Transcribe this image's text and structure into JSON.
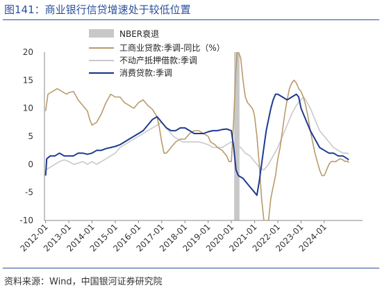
{
  "title": "图141：商业银行信贷增速处于较低位置",
  "source": "资料来源：Wind，中国银河证券研究院",
  "chart_data": {
    "type": "line",
    "ylim": [
      -10,
      20
    ],
    "yticks": [
      "20",
      "15",
      "10",
      "5",
      "0",
      "-5",
      "-10"
    ],
    "ytick_values": [
      20,
      15,
      10,
      5,
      0,
      -5,
      -10
    ],
    "xlim": [
      2011.95,
      2025.35
    ],
    "xticks": [
      "2012-01",
      "2013-01",
      "2014-01",
      "2015-01",
      "2016-01",
      "2017-01",
      "2018-01",
      "2019-01",
      "2020-01",
      "2021-01",
      "2022-01",
      "2023-01",
      "2024-01"
    ],
    "xtick_values": [
      2012,
      2013,
      2014,
      2015,
      2016,
      2017,
      2018,
      2019,
      2020,
      2021,
      2022,
      2023,
      2024
    ],
    "grid": false,
    "legend_position": "top-center",
    "recession": {
      "name": "NBER衰退",
      "start": 2020.12,
      "end": 2020.35,
      "color": "#c8c8c8"
    },
    "series": [
      {
        "name": "工商业贷款:季调-同比（%）",
        "color": "#b89a6a",
        "points": [
          [
            2012.0,
            9.5
          ],
          [
            2012.1,
            12.5
          ],
          [
            2012.3,
            13.0
          ],
          [
            2012.5,
            13.5
          ],
          [
            2012.7,
            13.0
          ],
          [
            2012.9,
            12.5
          ],
          [
            2013.0,
            12.8
          ],
          [
            2013.2,
            13.0
          ],
          [
            2013.4,
            11.5
          ],
          [
            2013.6,
            10.5
          ],
          [
            2013.8,
            9.5
          ],
          [
            2013.9,
            8.0
          ],
          [
            2014.0,
            7.0
          ],
          [
            2014.2,
            7.5
          ],
          [
            2014.4,
            9.0
          ],
          [
            2014.6,
            11.0
          ],
          [
            2014.8,
            12.5
          ],
          [
            2015.0,
            12.0
          ],
          [
            2015.2,
            12.0
          ],
          [
            2015.4,
            11.0
          ],
          [
            2015.6,
            10.5
          ],
          [
            2015.8,
            10.0
          ],
          [
            2016.0,
            11.0
          ],
          [
            2016.2,
            11.5
          ],
          [
            2016.4,
            10.5
          ],
          [
            2016.6,
            9.8
          ],
          [
            2016.8,
            8.5
          ],
          [
            2016.9,
            6.5
          ],
          [
            2017.0,
            4.0
          ],
          [
            2017.1,
            2.0
          ],
          [
            2017.2,
            2.0
          ],
          [
            2017.4,
            3.0
          ],
          [
            2017.6,
            4.0
          ],
          [
            2017.8,
            4.5
          ],
          [
            2018.0,
            4.5
          ],
          [
            2018.2,
            5.5
          ],
          [
            2018.4,
            6.0
          ],
          [
            2018.6,
            6.0
          ],
          [
            2018.8,
            5.5
          ],
          [
            2019.0,
            5.0
          ],
          [
            2019.1,
            4.0
          ],
          [
            2019.3,
            3.5
          ],
          [
            2019.4,
            3.0
          ],
          [
            2019.6,
            2.5
          ],
          [
            2019.7,
            2.0
          ],
          [
            2019.8,
            1.5
          ],
          [
            2019.9,
            0.5
          ],
          [
            2020.0,
            0.5
          ],
          [
            2020.1,
            8.0
          ],
          [
            2020.18,
            16.0
          ],
          [
            2020.25,
            20.0
          ],
          [
            2020.3,
            20.0
          ],
          [
            2020.4,
            19.0
          ],
          [
            2020.5,
            15.0
          ],
          [
            2020.6,
            12.0
          ],
          [
            2020.7,
            11.0
          ],
          [
            2020.8,
            10.5
          ],
          [
            2020.9,
            10.0
          ],
          [
            2020.95,
            9.5
          ],
          [
            2021.0,
            8.5
          ],
          [
            2021.1,
            5.0
          ],
          [
            2021.2,
            0.0
          ],
          [
            2021.3,
            -6.0
          ],
          [
            2021.4,
            -10.0
          ],
          [
            2021.6,
            -10.0
          ],
          [
            2021.7,
            -6.0
          ],
          [
            2021.8,
            -4.0
          ],
          [
            2021.9,
            -2.0
          ],
          [
            2022.0,
            1.0
          ],
          [
            2022.1,
            3.0
          ],
          [
            2022.2,
            6.0
          ],
          [
            2022.3,
            9.0
          ],
          [
            2022.4,
            11.5
          ],
          [
            2022.5,
            13.5
          ],
          [
            2022.6,
            14.5
          ],
          [
            2022.7,
            15.0
          ],
          [
            2022.8,
            14.5
          ],
          [
            2022.9,
            13.5
          ],
          [
            2023.0,
            13.0
          ],
          [
            2023.1,
            12.0
          ],
          [
            2023.2,
            10.5
          ],
          [
            2023.3,
            8.5
          ],
          [
            2023.4,
            6.0
          ],
          [
            2023.5,
            4.0
          ],
          [
            2023.6,
            2.0
          ],
          [
            2023.7,
            0.5
          ],
          [
            2023.8,
            -1.0
          ],
          [
            2023.9,
            -2.0
          ],
          [
            2024.0,
            -2.0
          ],
          [
            2024.1,
            -1.0
          ],
          [
            2024.2,
            0.0
          ],
          [
            2024.3,
            0.5
          ],
          [
            2024.4,
            0.5
          ],
          [
            2024.5,
            0.5
          ],
          [
            2024.6,
            0.8
          ],
          [
            2024.7,
            1.0
          ],
          [
            2024.8,
            0.8
          ],
          [
            2024.9,
            0.5
          ],
          [
            2025.0,
            0.6
          ],
          [
            2025.05,
            0.3
          ]
        ]
      },
      {
        "name": "不动产抵押借款:季调",
        "color": "#c9c9c9",
        "points": [
          [
            2012.0,
            -1.0
          ],
          [
            2012.2,
            -0.5
          ],
          [
            2012.4,
            0.0
          ],
          [
            2012.6,
            0.5
          ],
          [
            2012.8,
            0.8
          ],
          [
            2013.0,
            0.5
          ],
          [
            2013.2,
            0.0
          ],
          [
            2013.4,
            0.2
          ],
          [
            2013.6,
            0.5
          ],
          [
            2013.8,
            0.0
          ],
          [
            2014.0,
            0.5
          ],
          [
            2014.2,
            0.0
          ],
          [
            2014.4,
            0.5
          ],
          [
            2014.6,
            1.0
          ],
          [
            2014.8,
            1.5
          ],
          [
            2015.0,
            2.0
          ],
          [
            2015.2,
            3.0
          ],
          [
            2015.4,
            3.5
          ],
          [
            2015.6,
            4.0
          ],
          [
            2015.8,
            4.5
          ],
          [
            2016.0,
            5.0
          ],
          [
            2016.2,
            5.5
          ],
          [
            2016.4,
            6.0
          ],
          [
            2016.6,
            6.5
          ],
          [
            2016.8,
            7.0
          ],
          [
            2017.0,
            7.5
          ],
          [
            2017.1,
            7.0
          ],
          [
            2017.3,
            6.0
          ],
          [
            2017.5,
            5.0
          ],
          [
            2017.7,
            4.5
          ],
          [
            2017.9,
            4.0
          ],
          [
            2018.0,
            4.0
          ],
          [
            2018.2,
            4.0
          ],
          [
            2018.4,
            4.0
          ],
          [
            2018.6,
            4.0
          ],
          [
            2018.8,
            3.8
          ],
          [
            2019.0,
            3.5
          ],
          [
            2019.2,
            3.0
          ],
          [
            2019.4,
            3.0
          ],
          [
            2019.6,
            3.0
          ],
          [
            2019.8,
            3.5
          ],
          [
            2020.0,
            4.0
          ],
          [
            2020.2,
            3.5
          ],
          [
            2020.4,
            3.0
          ],
          [
            2020.6,
            2.0
          ],
          [
            2020.8,
            1.5
          ],
          [
            2021.0,
            0.5
          ],
          [
            2021.2,
            -0.5
          ],
          [
            2021.4,
            -1.0
          ],
          [
            2021.6,
            0.0
          ],
          [
            2021.8,
            1.5
          ],
          [
            2022.0,
            3.0
          ],
          [
            2022.2,
            5.0
          ],
          [
            2022.4,
            7.0
          ],
          [
            2022.6,
            9.0
          ],
          [
            2022.8,
            10.5
          ],
          [
            2023.0,
            11.5
          ],
          [
            2023.1,
            12.0
          ],
          [
            2023.2,
            11.5
          ],
          [
            2023.4,
            10.0
          ],
          [
            2023.6,
            8.0
          ],
          [
            2023.8,
            6.0
          ],
          [
            2024.0,
            5.0
          ],
          [
            2024.2,
            4.0
          ],
          [
            2024.4,
            3.0
          ],
          [
            2024.6,
            2.5
          ],
          [
            2024.8,
            2.0
          ],
          [
            2025.0,
            2.0
          ],
          [
            2025.05,
            1.8
          ]
        ]
      },
      {
        "name": "消费贷款:季调",
        "color": "#1d3a8f",
        "points": [
          [
            2012.0,
            -2.0
          ],
          [
            2012.05,
            1.0
          ],
          [
            2012.2,
            1.5
          ],
          [
            2012.4,
            1.5
          ],
          [
            2012.6,
            2.0
          ],
          [
            2012.8,
            1.5
          ],
          [
            2013.0,
            1.5
          ],
          [
            2013.2,
            1.5
          ],
          [
            2013.4,
            2.0
          ],
          [
            2013.6,
            2.0
          ],
          [
            2013.8,
            1.8
          ],
          [
            2014.0,
            2.0
          ],
          [
            2014.2,
            2.5
          ],
          [
            2014.4,
            2.5
          ],
          [
            2014.6,
            2.8
          ],
          [
            2014.8,
            3.0
          ],
          [
            2015.0,
            3.2
          ],
          [
            2015.2,
            3.5
          ],
          [
            2015.4,
            4.0
          ],
          [
            2015.6,
            4.5
          ],
          [
            2015.8,
            5.0
          ],
          [
            2016.0,
            5.5
          ],
          [
            2016.2,
            6.0
          ],
          [
            2016.4,
            7.0
          ],
          [
            2016.6,
            8.0
          ],
          [
            2016.8,
            8.5
          ],
          [
            2016.9,
            8.0
          ],
          [
            2017.0,
            7.5
          ],
          [
            2017.1,
            7.0
          ],
          [
            2017.2,
            6.5
          ],
          [
            2017.4,
            6.0
          ],
          [
            2017.6,
            6.0
          ],
          [
            2017.8,
            6.5
          ],
          [
            2018.0,
            6.5
          ],
          [
            2018.2,
            6.0
          ],
          [
            2018.4,
            5.5
          ],
          [
            2018.6,
            5.5
          ],
          [
            2018.8,
            5.5
          ],
          [
            2019.0,
            5.8
          ],
          [
            2019.2,
            6.0
          ],
          [
            2019.4,
            6.0
          ],
          [
            2019.6,
            6.2
          ],
          [
            2019.8,
            6.3
          ],
          [
            2020.0,
            6.0
          ],
          [
            2020.1,
            3.0
          ],
          [
            2020.2,
            -1.0
          ],
          [
            2020.3,
            -2.0
          ],
          [
            2020.5,
            -2.5
          ],
          [
            2020.7,
            -3.5
          ],
          [
            2020.9,
            -4.5
          ],
          [
            2021.0,
            -5.0
          ],
          [
            2021.1,
            -5.5
          ],
          [
            2021.2,
            -3.0
          ],
          [
            2021.3,
            0.0
          ],
          [
            2021.4,
            3.0
          ],
          [
            2021.5,
            6.0
          ],
          [
            2021.6,
            8.0
          ],
          [
            2021.7,
            10.0
          ],
          [
            2021.8,
            11.5
          ],
          [
            2021.9,
            12.5
          ],
          [
            2022.0,
            12.5
          ],
          [
            2022.2,
            12.0
          ],
          [
            2022.4,
            11.5
          ],
          [
            2022.6,
            12.0
          ],
          [
            2022.8,
            12.5
          ],
          [
            2022.9,
            12.0
          ],
          [
            2023.0,
            10.0
          ],
          [
            2023.2,
            8.0
          ],
          [
            2023.4,
            6.0
          ],
          [
            2023.6,
            4.5
          ],
          [
            2023.8,
            3.0
          ],
          [
            2024.0,
            2.5
          ],
          [
            2024.2,
            2.0
          ],
          [
            2024.4,
            2.0
          ],
          [
            2024.6,
            1.5
          ],
          [
            2024.8,
            1.5
          ],
          [
            2025.0,
            1.0
          ],
          [
            2025.05,
            0.8
          ]
        ]
      }
    ]
  }
}
